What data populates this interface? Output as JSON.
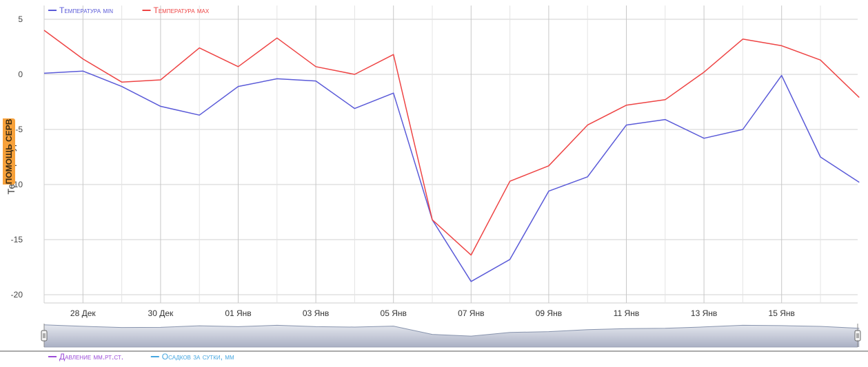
{
  "help_tab": {
    "label": "ПОМОЩЬ СЕРВ"
  },
  "chart_data": {
    "type": "line",
    "ylabel": "Температура",
    "ylim": [
      -21,
      5.5
    ],
    "yticks": [
      5,
      0,
      -5,
      -10,
      -15,
      -20
    ],
    "grid": true,
    "legend_placement": "top-left",
    "x_start_date": "2015-12-27",
    "x": [
      "27 Дек",
      "28 Дек",
      "29 Дек",
      "30 Дек",
      "31 Дек",
      "01 Янв",
      "02 Янв",
      "03 Янв",
      "04 Янв",
      "05 Янв",
      "06 Янв",
      "07 Янв",
      "08 Янв",
      "09 Янв",
      "10 Янв",
      "11 Янв",
      "12 Янв",
      "13 Янв",
      "14 Янв",
      "15 Янв",
      "16 Янв",
      "17 Янв"
    ],
    "x_tick_labels": [
      "28 Дек",
      "30 Дек",
      "01 Янв",
      "03 Янв",
      "05 Янв",
      "07 Янв",
      "09 Янв",
      "11 Янв",
      "13 Янв",
      "15 Янв"
    ],
    "series": [
      {
        "name": "Температура min",
        "color": "#5a5ad8",
        "values": [
          0.1,
          0.3,
          -1.1,
          -2.9,
          -3.7,
          -1.1,
          -0.4,
          -0.6,
          -3.1,
          -1.7,
          -13.2,
          -18.8,
          -16.8,
          -10.6,
          -9.3,
          -4.6,
          -4.1,
          -5.8,
          -5.0,
          -0.1,
          -7.5,
          -9.8
        ]
      },
      {
        "name": "Температура max",
        "color": "#ee4444",
        "values": [
          4.0,
          1.4,
          -0.7,
          -0.5,
          2.4,
          0.7,
          3.3,
          0.7,
          0.0,
          1.8,
          -13.2,
          -16.4,
          -9.7,
          -8.3,
          -4.6,
          -2.8,
          -2.3,
          0.2,
          3.2,
          2.6,
          1.3,
          -2.1
        ]
      }
    ],
    "navigator": {
      "fill_top": "#e4e7ee",
      "fill_bottom": "#aab0c4",
      "line_color": "#8793ad"
    },
    "bottom_legend": [
      {
        "name": "Давление мм.рт.ст.",
        "color": "#9b4cd8"
      },
      {
        "name": "Осадков за сутки, мм",
        "color": "#45a6e0"
      }
    ]
  }
}
